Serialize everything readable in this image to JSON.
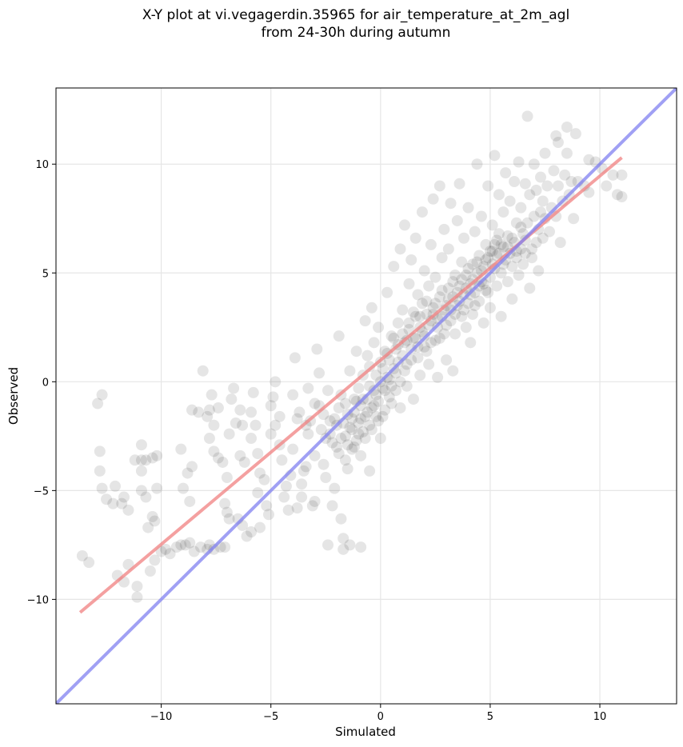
{
  "chart_data": {
    "type": "scatter",
    "title_line1": "X-Y plot at vi.vegagerdin.35965 for air_temperature_at_2m_agl",
    "title_line2": "from 24-30h during autumn",
    "xlabel": "Simulated",
    "ylabel": "Observed",
    "xlim": [
      -14.8,
      13.5
    ],
    "ylim": [
      -14.8,
      13.5
    ],
    "xticks": [
      -10,
      -5,
      0,
      5,
      10
    ],
    "yticks": [
      -10,
      -5,
      0,
      5,
      10
    ],
    "xtick_labels": [
      "−10",
      "−5",
      "0",
      "5",
      "10"
    ],
    "ytick_labels": [
      "−10",
      "−5",
      "0",
      "5",
      "10"
    ],
    "grid": true,
    "colors": {
      "points": "#000000",
      "regression_line": "#f08080",
      "identity_line": "#8080f0"
    },
    "regression_line": {
      "x": [
        -13.7,
        11.0
      ],
      "y": [
        -10.6,
        10.3
      ]
    },
    "identity_line": {
      "x": [
        -14.8,
        13.5
      ],
      "y": [
        -14.8,
        13.5
      ]
    },
    "points": [
      [
        -13.6,
        -8.0
      ],
      [
        -13.3,
        -8.3
      ],
      [
        -12.9,
        -1.0
      ],
      [
        -12.7,
        -0.6
      ],
      [
        -12.8,
        -3.2
      ],
      [
        -12.8,
        -4.1
      ],
      [
        -12.7,
        -4.9
      ],
      [
        -12.5,
        -5.4
      ],
      [
        -12.2,
        -5.6
      ],
      [
        -12.1,
        -4.8
      ],
      [
        -11.7,
        -5.3
      ],
      [
        -11.8,
        -5.6
      ],
      [
        -11.5,
        -5.9
      ],
      [
        -12.0,
        -8.9
      ],
      [
        -11.7,
        -9.2
      ],
      [
        -11.5,
        -8.4
      ],
      [
        -11.1,
        -9.4
      ],
      [
        -11.1,
        -9.9
      ],
      [
        -11.2,
        -3.6
      ],
      [
        -10.9,
        -3.6
      ],
      [
        -10.9,
        -2.9
      ],
      [
        -10.7,
        -3.6
      ],
      [
        -10.4,
        -3.5
      ],
      [
        -10.2,
        -3.4
      ],
      [
        -10.9,
        -4.1
      ],
      [
        -10.9,
        -5.0
      ],
      [
        -10.7,
        -5.3
      ],
      [
        -10.6,
        -6.7
      ],
      [
        -10.4,
        -6.2
      ],
      [
        -10.3,
        -6.4
      ],
      [
        -10.2,
        -4.9
      ],
      [
        -10.5,
        -8.7
      ],
      [
        -10.3,
        -8.2
      ],
      [
        -10.0,
        -7.8
      ],
      [
        -9.8,
        -7.7
      ],
      [
        -9.6,
        -7.9
      ],
      [
        -9.3,
        -7.6
      ],
      [
        -9.1,
        -7.5
      ],
      [
        -8.9,
        -7.5
      ],
      [
        -8.7,
        -7.4
      ],
      [
        -8.5,
        -7.8
      ],
      [
        -8.2,
        -7.6
      ],
      [
        -7.9,
        -7.7
      ],
      [
        -7.8,
        -7.5
      ],
      [
        -7.6,
        -7.7
      ],
      [
        -7.3,
        -7.6
      ],
      [
        -7.1,
        -7.6
      ],
      [
        -9.0,
        -4.9
      ],
      [
        -8.8,
        -4.2
      ],
      [
        -8.6,
        -3.9
      ],
      [
        -8.7,
        -5.5
      ],
      [
        -9.1,
        -3.1
      ],
      [
        -8.6,
        -1.3
      ],
      [
        -8.3,
        -1.4
      ],
      [
        -8.1,
        0.5
      ],
      [
        -7.8,
        -1.3
      ],
      [
        -7.7,
        -0.6
      ],
      [
        -7.9,
        -1.6
      ],
      [
        -7.6,
        -2.0
      ],
      [
        -7.4,
        -1.2
      ],
      [
        -7.8,
        -2.6
      ],
      [
        -7.6,
        -3.2
      ],
      [
        -7.4,
        -3.5
      ],
      [
        -7.2,
        -3.7
      ],
      [
        -7.1,
        -5.6
      ],
      [
        -7.0,
        -6.0
      ],
      [
        -6.9,
        -6.3
      ],
      [
        -7.0,
        -4.4
      ],
      [
        -6.8,
        -0.8
      ],
      [
        -6.9,
        -2.4
      ],
      [
        -6.6,
        -1.9
      ],
      [
        -6.7,
        -0.3
      ],
      [
        -6.4,
        -1.3
      ],
      [
        -6.3,
        -2.0
      ],
      [
        -6.4,
        -3.4
      ],
      [
        -6.2,
        -3.7
      ],
      [
        -6.5,
        -6.3
      ],
      [
        -6.3,
        -6.6
      ],
      [
        -6.1,
        -7.1
      ],
      [
        -5.9,
        -6.9
      ],
      [
        -5.9,
        -2.6
      ],
      [
        -5.7,
        -2.0
      ],
      [
        -5.9,
        -1.4
      ],
      [
        -5.8,
        -0.5
      ],
      [
        -5.6,
        -3.3
      ],
      [
        -5.5,
        -4.2
      ],
      [
        -5.6,
        -5.1
      ],
      [
        -5.5,
        -6.7
      ],
      [
        -5.2,
        -5.7
      ],
      [
        -5.3,
        -4.5
      ],
      [
        -5.1,
        -6.1
      ],
      [
        -5.0,
        -2.4
      ],
      [
        -5.0,
        -1.1
      ],
      [
        -4.9,
        -0.7
      ],
      [
        -4.8,
        -2.0
      ],
      [
        -4.8,
        0.0
      ],
      [
        -4.6,
        -2.9
      ],
      [
        -4.5,
        -3.6
      ],
      [
        -4.6,
        -1.6
      ],
      [
        -4.4,
        -5.3
      ],
      [
        -4.3,
        -4.8
      ],
      [
        -4.2,
        -5.9
      ],
      [
        -4.1,
        -4.3
      ],
      [
        -4.0,
        -3.1
      ],
      [
        -4.0,
        -0.6
      ],
      [
        -3.9,
        1.1
      ],
      [
        -3.8,
        -1.7
      ],
      [
        -3.8,
        -5.8
      ],
      [
        -3.6,
        -5.3
      ],
      [
        -3.6,
        -4.7
      ],
      [
        -3.5,
        -4.1
      ],
      [
        -3.4,
        -3.9
      ],
      [
        -3.3,
        -0.3
      ],
      [
        -3.3,
        -2.4
      ],
      [
        -3.2,
        -1.8
      ],
      [
        -3.1,
        -5.7
      ],
      [
        -3.0,
        -5.5
      ],
      [
        -3.0,
        -3.4
      ],
      [
        -2.9,
        1.5
      ],
      [
        -2.8,
        -1.1
      ],
      [
        -2.8,
        0.4
      ],
      [
        -2.6,
        -3.8
      ],
      [
        -2.5,
        -4.4
      ],
      [
        -2.5,
        -2.6
      ],
      [
        -2.4,
        -0.4
      ],
      [
        -2.4,
        -7.5
      ],
      [
        -2.3,
        -1.8
      ],
      [
        -2.2,
        -2.8
      ],
      [
        -2.2,
        -5.7
      ],
      [
        -2.1,
        -4.9
      ],
      [
        -2.0,
        -3.0
      ],
      [
        -2.0,
        -2.0
      ],
      [
        -1.9,
        -1.2
      ],
      [
        -1.9,
        2.1
      ],
      [
        -1.8,
        -6.3
      ],
      [
        -1.8,
        -0.6
      ],
      [
        -1.7,
        -7.2
      ],
      [
        -1.7,
        -7.7
      ],
      [
        -1.6,
        -3.6
      ],
      [
        -1.6,
        -2.5
      ],
      [
        -1.5,
        -4.0
      ],
      [
        -1.5,
        -1.5
      ],
      [
        -1.4,
        -7.5
      ],
      [
        -1.4,
        0.5
      ],
      [
        -1.3,
        -3.1
      ],
      [
        -1.3,
        -2.2
      ],
      [
        -1.2,
        -1.4
      ],
      [
        -1.2,
        -0.8
      ],
      [
        -1.1,
        -2.7
      ],
      [
        -1.1,
        1.4
      ],
      [
        -1.0,
        -1.9
      ],
      [
        -1.0,
        -0.3
      ],
      [
        -0.9,
        -3.4
      ],
      [
        -0.9,
        -1.1
      ],
      [
        -0.9,
        -7.6
      ],
      [
        -0.8,
        0.3
      ],
      [
        -0.8,
        -2.3
      ],
      [
        -0.7,
        -1.6
      ],
      [
        -0.7,
        2.8
      ],
      [
        -0.6,
        -0.8
      ],
      [
        -0.6,
        1.2
      ],
      [
        -0.5,
        -2.0
      ],
      [
        -0.5,
        -4.1
      ],
      [
        -0.5,
        0.7
      ],
      [
        -0.4,
        -1.2
      ],
      [
        -0.4,
        3.4
      ],
      [
        -0.3,
        -0.4
      ],
      [
        -0.3,
        1.8
      ],
      [
        -0.2,
        -1.6
      ],
      [
        -0.2,
        0.3
      ],
      [
        -0.1,
        -0.9
      ],
      [
        -0.1,
        2.5
      ],
      [
        0.0,
        0.0
      ],
      [
        0.0,
        -2.6
      ],
      [
        0.1,
        0.6
      ],
      [
        0.1,
        -0.3
      ],
      [
        0.2,
        1.4
      ],
      [
        0.2,
        -1.3
      ],
      [
        0.3,
        0.2
      ],
      [
        0.3,
        4.1
      ],
      [
        0.4,
        -0.7
      ],
      [
        0.4,
        1.0
      ],
      [
        0.5,
        2.1
      ],
      [
        0.5,
        -1.0
      ],
      [
        0.6,
        0.6
      ],
      [
        0.6,
        5.3
      ],
      [
        0.7,
        1.5
      ],
      [
        0.7,
        -0.4
      ],
      [
        0.8,
        2.7
      ],
      [
        0.8,
        0.9
      ],
      [
        0.9,
        6.1
      ],
      [
        0.9,
        -1.2
      ],
      [
        1.0,
        1.2
      ],
      [
        1.0,
        3.3
      ],
      [
        1.1,
        0.5
      ],
      [
        1.1,
        7.2
      ],
      [
        1.2,
        1.9
      ],
      [
        1.2,
        -0.2
      ],
      [
        1.3,
        4.5
      ],
      [
        1.3,
        2.4
      ],
      [
        1.4,
        1.0
      ],
      [
        1.4,
        5.6
      ],
      [
        1.5,
        2.0
      ],
      [
        1.5,
        -0.8
      ],
      [
        1.6,
        3.0
      ],
      [
        1.6,
        6.6
      ],
      [
        1.7,
        1.6
      ],
      [
        1.7,
        4.0
      ],
      [
        1.8,
        2.5
      ],
      [
        1.8,
        0.3
      ],
      [
        1.9,
        3.6
      ],
      [
        1.9,
        7.8
      ],
      [
        2.0,
        2.1
      ],
      [
        2.0,
        5.1
      ],
      [
        2.1,
        1.4
      ],
      [
        2.1,
        3.1
      ],
      [
        2.2,
        4.4
      ],
      [
        2.2,
        0.8
      ],
      [
        2.3,
        2.8
      ],
      [
        2.3,
        6.3
      ],
      [
        2.4,
        3.4
      ],
      [
        2.4,
        8.4
      ],
      [
        2.5,
        1.9
      ],
      [
        2.5,
        4.8
      ],
      [
        2.6,
        2.5
      ],
      [
        2.6,
        0.2
      ],
      [
        2.7,
        3.9
      ],
      [
        2.7,
        9.0
      ],
      [
        2.8,
        3.0
      ],
      [
        2.8,
        5.7
      ],
      [
        2.9,
        2.2
      ],
      [
        2.9,
        7.0
      ],
      [
        3.0,
        3.5
      ],
      [
        3.0,
        1.0
      ],
      [
        3.1,
        4.3
      ],
      [
        3.1,
        6.1
      ],
      [
        3.2,
        2.8
      ],
      [
        3.2,
        8.2
      ],
      [
        3.3,
        3.9
      ],
      [
        3.3,
        0.5
      ],
      [
        3.4,
        4.9
      ],
      [
        3.4,
        2.2
      ],
      [
        3.5,
        3.5
      ],
      [
        3.5,
        7.4
      ],
      [
        3.6,
        4.4
      ],
      [
        3.6,
        9.1
      ],
      [
        3.7,
        3.0
      ],
      [
        3.7,
        5.5
      ],
      [
        3.8,
        4.0
      ],
      [
        3.8,
        6.6
      ],
      [
        3.9,
        2.5
      ],
      [
        3.9,
        4.9
      ],
      [
        4.0,
        3.6
      ],
      [
        4.0,
        8.0
      ],
      [
        4.1,
        4.5
      ],
      [
        4.1,
        1.8
      ],
      [
        4.2,
        5.4
      ],
      [
        4.2,
        3.1
      ],
      [
        4.3,
        4.1
      ],
      [
        4.3,
        6.9
      ],
      [
        4.4,
        5.0
      ],
      [
        4.4,
        10.0
      ],
      [
        4.5,
        3.7
      ],
      [
        4.5,
        5.8
      ],
      [
        4.6,
        4.6
      ],
      [
        4.6,
        7.6
      ],
      [
        4.7,
        2.7
      ],
      [
        4.7,
        5.3
      ],
      [
        4.8,
        4.2
      ],
      [
        4.8,
        6.3
      ],
      [
        4.9,
        5.7
      ],
      [
        4.9,
        9.0
      ],
      [
        5.0,
        4.8
      ],
      [
        5.0,
        3.4
      ],
      [
        5.1,
        6.0
      ],
      [
        5.1,
        7.2
      ],
      [
        5.2,
        5.2
      ],
      [
        5.2,
        10.4
      ],
      [
        5.3,
        4.4
      ],
      [
        5.3,
        6.5
      ],
      [
        5.4,
        5.9
      ],
      [
        5.4,
        8.6
      ],
      [
        5.5,
        5.0
      ],
      [
        5.5,
        3.0
      ],
      [
        5.6,
        6.2
      ],
      [
        5.6,
        7.8
      ],
      [
        5.7,
        5.6
      ],
      [
        5.7,
        9.6
      ],
      [
        5.8,
        4.6
      ],
      [
        5.8,
        6.7
      ],
      [
        5.9,
        5.9
      ],
      [
        5.9,
        8.3
      ],
      [
        6.0,
        5.3
      ],
      [
        6.0,
        3.8
      ],
      [
        6.1,
        6.4
      ],
      [
        6.1,
        9.2
      ],
      [
        6.2,
        5.7
      ],
      [
        6.2,
        7.3
      ],
      [
        6.3,
        4.9
      ],
      [
        6.3,
        10.1
      ],
      [
        6.4,
        6.1
      ],
      [
        6.4,
        8.0
      ],
      [
        6.5,
        5.4
      ],
      [
        6.5,
        6.8
      ],
      [
        6.6,
        6.5
      ],
      [
        6.6,
        9.1
      ],
      [
        6.7,
        12.2
      ],
      [
        6.7,
        7.3
      ],
      [
        6.8,
        4.3
      ],
      [
        6.8,
        8.6
      ],
      [
        6.9,
        6.1
      ],
      [
        6.9,
        5.7
      ],
      [
        7.0,
        7.6
      ],
      [
        7.0,
        10.0
      ],
      [
        7.1,
        6.4
      ],
      [
        7.1,
        8.8
      ],
      [
        7.2,
        7.0
      ],
      [
        7.2,
        5.1
      ],
      [
        7.3,
        9.4
      ],
      [
        7.3,
        7.8
      ],
      [
        7.4,
        8.3
      ],
      [
        7.4,
        6.6
      ],
      [
        7.5,
        10.5
      ],
      [
        7.5,
        7.5
      ],
      [
        7.6,
        9.0
      ],
      [
        7.7,
        6.9
      ],
      [
        7.8,
        8.0
      ],
      [
        7.9,
        9.7
      ],
      [
        8.0,
        11.3
      ],
      [
        8.0,
        7.6
      ],
      [
        8.1,
        9.0
      ],
      [
        8.1,
        11.0
      ],
      [
        8.2,
        6.4
      ],
      [
        8.3,
        8.3
      ],
      [
        8.4,
        9.5
      ],
      [
        8.5,
        11.7
      ],
      [
        8.5,
        10.5
      ],
      [
        8.6,
        8.6
      ],
      [
        8.7,
        9.2
      ],
      [
        8.8,
        7.5
      ],
      [
        8.9,
        11.4
      ],
      [
        9.0,
        9.2
      ],
      [
        9.3,
        9.0
      ],
      [
        9.5,
        10.2
      ],
      [
        9.5,
        8.7
      ],
      [
        9.8,
        10.1
      ],
      [
        10.1,
        9.8
      ],
      [
        10.3,
        9.0
      ],
      [
        10.6,
        9.5
      ],
      [
        10.8,
        8.6
      ],
      [
        11.0,
        8.5
      ],
      [
        11.0,
        9.5
      ],
      [
        -3.7,
        -1.4
      ],
      [
        -3.4,
        -2.0
      ],
      [
        -3.0,
        -1.0
      ],
      [
        -2.7,
        -2.2
      ],
      [
        -2.6,
        -1.5
      ],
      [
        -2.3,
        -2.4
      ],
      [
        -2.1,
        -1.7
      ],
      [
        -1.9,
        -3.3
      ],
      [
        -1.8,
        -2.6
      ],
      [
        -1.7,
        -1.9
      ],
      [
        -1.6,
        -1.0
      ],
      [
        -1.5,
        -2.9
      ],
      [
        -1.4,
        -2.1
      ],
      [
        -1.3,
        -1.7
      ],
      [
        -1.2,
        -3.0
      ],
      [
        -1.1,
        -0.9
      ],
      [
        -1.0,
        -2.4
      ],
      [
        -0.9,
        -1.7
      ],
      [
        -0.8,
        -0.8
      ],
      [
        -0.7,
        -2.6
      ],
      [
        -0.6,
        -1.4
      ],
      [
        -0.5,
        -0.2
      ],
      [
        -0.4,
        -2.2
      ],
      [
        -0.3,
        -1.1
      ],
      [
        -0.2,
        -0.6
      ],
      [
        -0.1,
        -1.8
      ],
      [
        0.0,
        0.9
      ],
      [
        0.1,
        -1.6
      ],
      [
        0.2,
        -0.4
      ],
      [
        0.3,
        1.3
      ],
      [
        0.4,
        0.1
      ],
      [
        0.5,
        -0.2
      ],
      [
        0.6,
        2.0
      ],
      [
        0.7,
        0.4
      ],
      [
        0.8,
        1.7
      ],
      [
        0.9,
        0.0
      ],
      [
        1.0,
        2.2
      ],
      [
        1.1,
        1.8
      ],
      [
        1.2,
        0.8
      ],
      [
        1.3,
        2.7
      ],
      [
        1.4,
        1.5
      ],
      [
        1.5,
        3.2
      ],
      [
        1.6,
        2.0
      ],
      [
        1.7,
        1.1
      ],
      [
        1.8,
        3.0
      ],
      [
        1.9,
        2.3
      ],
      [
        2.0,
        1.6
      ],
      [
        2.1,
        3.7
      ],
      [
        2.2,
        2.6
      ],
      [
        2.3,
        1.8
      ],
      [
        2.4,
        3.1
      ],
      [
        2.5,
        3.6
      ],
      [
        2.6,
        2.9
      ],
      [
        2.7,
        2.0
      ],
      [
        2.8,
        4.2
      ],
      [
        2.9,
        3.3
      ],
      [
        3.0,
        2.6
      ],
      [
        3.1,
        3.8
      ],
      [
        3.2,
        3.3
      ],
      [
        3.3,
        4.6
      ],
      [
        3.4,
        3.1
      ],
      [
        3.5,
        4.1
      ],
      [
        3.6,
        3.7
      ],
      [
        3.7,
        4.7
      ],
      [
        3.8,
        3.3
      ],
      [
        3.9,
        4.3
      ],
      [
        4.0,
        5.2
      ],
      [
        4.1,
        4.0
      ],
      [
        4.2,
        4.7
      ],
      [
        4.3,
        3.5
      ],
      [
        4.4,
        5.5
      ],
      [
        4.5,
        4.4
      ],
      [
        4.6,
        5.1
      ],
      [
        4.7,
        4.5
      ],
      [
        4.8,
        5.6
      ],
      [
        4.9,
        4.1
      ],
      [
        5.0,
        6.0
      ],
      [
        5.1,
        5.4
      ],
      [
        5.2,
        6.3
      ],
      [
        5.3,
        5.8
      ],
      [
        5.4,
        6.8
      ],
      [
        5.5,
        6.3
      ],
      [
        5.6,
        5.4
      ],
      [
        5.8,
        6.2
      ],
      [
        6.0,
        6.6
      ],
      [
        6.2,
        6.0
      ],
      [
        6.4,
        7.1
      ],
      [
        6.6,
        5.9
      ]
    ]
  }
}
